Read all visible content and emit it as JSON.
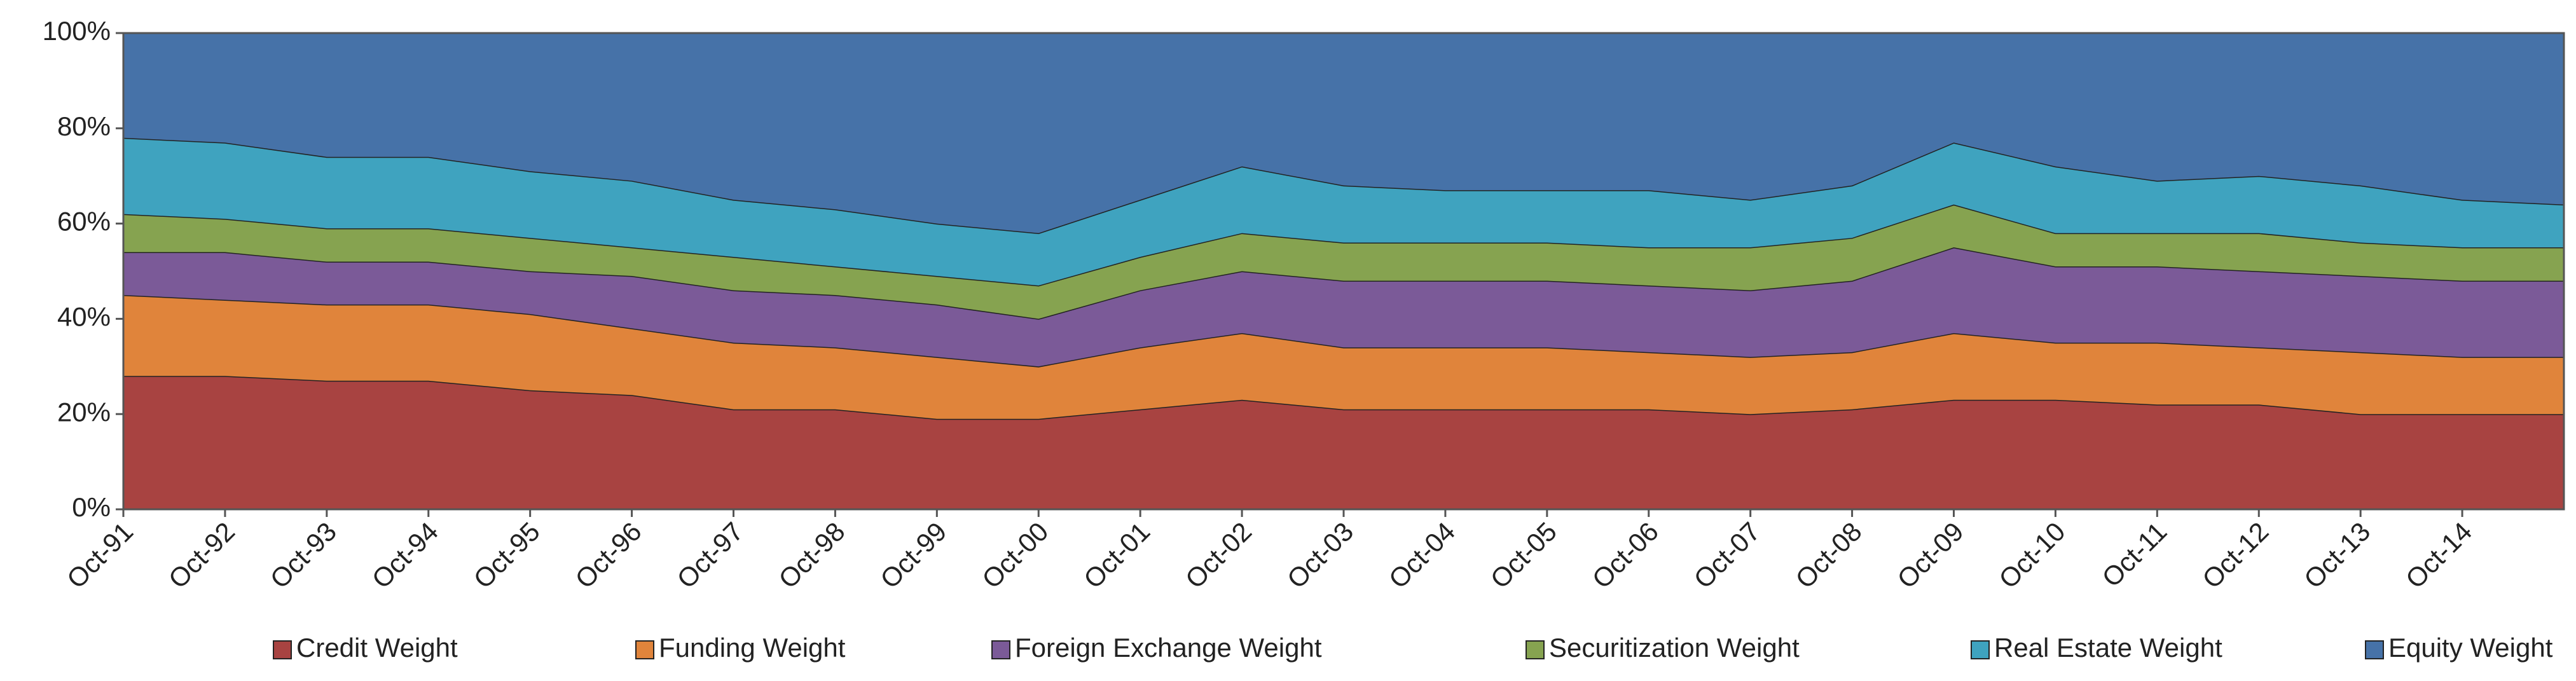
{
  "chart_data": {
    "type": "stacked_area",
    "categories": [
      "Oct-91",
      "Oct-92",
      "Oct-93",
      "Oct-94",
      "Oct-95",
      "Oct-96",
      "Oct-97",
      "Oct-98",
      "Oct-99",
      "Oct-00",
      "Oct-01",
      "Oct-02",
      "Oct-03",
      "Oct-04",
      "Oct-05",
      "Oct-06",
      "Oct-07",
      "Oct-08",
      "Oct-09",
      "Oct-10",
      "Oct-11",
      "Oct-12",
      "Oct-13",
      "Oct-14",
      null
    ],
    "series": [
      {
        "name": "Credit Weight",
        "color": "#a84341",
        "values": [
          28,
          28,
          27,
          27,
          25,
          24,
          21,
          21,
          19,
          19,
          21,
          23,
          21,
          21,
          21,
          21,
          20,
          21,
          23,
          23,
          22,
          22,
          20,
          20,
          20
        ]
      },
      {
        "name": "Funding Weight",
        "color": "#e0843b",
        "values": [
          17,
          16,
          16,
          16,
          16,
          14,
          14,
          13,
          13,
          11,
          13,
          14,
          13,
          13,
          13,
          12,
          12,
          12,
          14,
          12,
          13,
          12,
          13,
          12,
          12
        ]
      },
      {
        "name": "Foreign Exchange Weight",
        "color": "#7b5a98",
        "values": [
          9,
          10,
          9,
          9,
          9,
          11,
          11,
          11,
          11,
          10,
          12,
          13,
          14,
          14,
          14,
          14,
          14,
          15,
          18,
          16,
          16,
          16,
          16,
          16,
          16
        ]
      },
      {
        "name": "Securitization Weight",
        "color": "#86a350",
        "values": [
          8,
          7,
          7,
          7,
          7,
          6,
          7,
          6,
          6,
          7,
          7,
          8,
          8,
          8,
          8,
          8,
          9,
          9,
          9,
          7,
          7,
          8,
          7,
          7,
          7
        ]
      },
      {
        "name": "Real Estate Weight",
        "color": "#3fa3bf",
        "values": [
          16,
          16,
          15,
          15,
          14,
          14,
          12,
          12,
          11,
          11,
          12,
          14,
          12,
          11,
          11,
          12,
          10,
          11,
          13,
          14,
          11,
          12,
          12,
          10,
          9
        ]
      },
      {
        "name": "Equity Weight",
        "color": "#4672a8",
        "values": [
          22,
          23,
          26,
          26,
          29,
          31,
          35,
          37,
          40,
          42,
          35,
          28,
          32,
          33,
          33,
          33,
          35,
          32,
          23,
          28,
          31,
          30,
          32,
          35,
          36
        ]
      }
    ],
    "ylim": [
      0,
      100
    ],
    "yticks": [
      {
        "value": 0,
        "label": "0%"
      },
      {
        "value": 20,
        "label": "20%"
      },
      {
        "value": 40,
        "label": "40%"
      },
      {
        "value": 60,
        "label": "60%"
      },
      {
        "value": 80,
        "label": "80%"
      },
      {
        "value": 100,
        "label": "100%"
      }
    ],
    "legend": "bottom"
  }
}
